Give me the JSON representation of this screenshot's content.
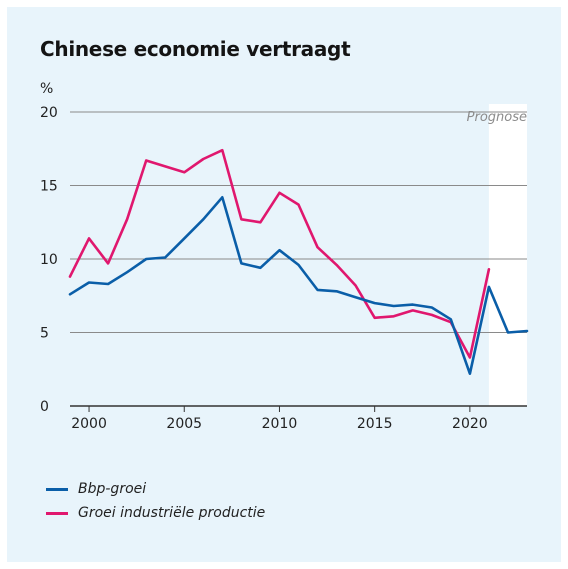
{
  "chart_data": {
    "type": "line",
    "title": "Chinese economie vertraagt",
    "ylabel": "%",
    "ylim": [
      0,
      20
    ],
    "yticks": [
      0,
      5,
      10,
      15,
      20
    ],
    "xlim": [
      1999,
      2023
    ],
    "xticks": [
      2000,
      2005,
      2010,
      2015,
      2020
    ],
    "grid": true,
    "forecast": {
      "label": "Prognose",
      "from": 2021,
      "to": 2023
    },
    "legend_position": "bottom-left",
    "series": [
      {
        "name": "Bbp-groei",
        "color": "#0a5ea8",
        "x": [
          1999,
          2000,
          2001,
          2002,
          2003,
          2004,
          2005,
          2006,
          2007,
          2008,
          2009,
          2010,
          2011,
          2012,
          2013,
          2014,
          2015,
          2016,
          2017,
          2018,
          2019,
          2020,
          2021,
          2022,
          2023
        ],
        "y": [
          7.6,
          8.4,
          8.3,
          9.1,
          10.0,
          10.1,
          11.4,
          12.7,
          14.2,
          9.7,
          9.4,
          10.6,
          9.6,
          7.9,
          7.8,
          7.4,
          7.0,
          6.8,
          6.9,
          6.7,
          5.9,
          2.2,
          8.1,
          5.0,
          5.1
        ]
      },
      {
        "name": "Groei industriële productie",
        "color": "#e0176e",
        "x": [
          1999,
          2000,
          2001,
          2002,
          2003,
          2004,
          2005,
          2006,
          2007,
          2008,
          2009,
          2010,
          2011,
          2012,
          2013,
          2014,
          2015,
          2016,
          2017,
          2018,
          2019,
          2020,
          2021
        ],
        "y": [
          8.8,
          11.4,
          9.7,
          12.7,
          16.7,
          16.3,
          15.9,
          16.8,
          17.4,
          12.7,
          12.5,
          14.5,
          13.7,
          10.8,
          9.6,
          8.2,
          6.0,
          6.1,
          6.5,
          6.2,
          5.7,
          3.3,
          9.3
        ]
      }
    ]
  }
}
